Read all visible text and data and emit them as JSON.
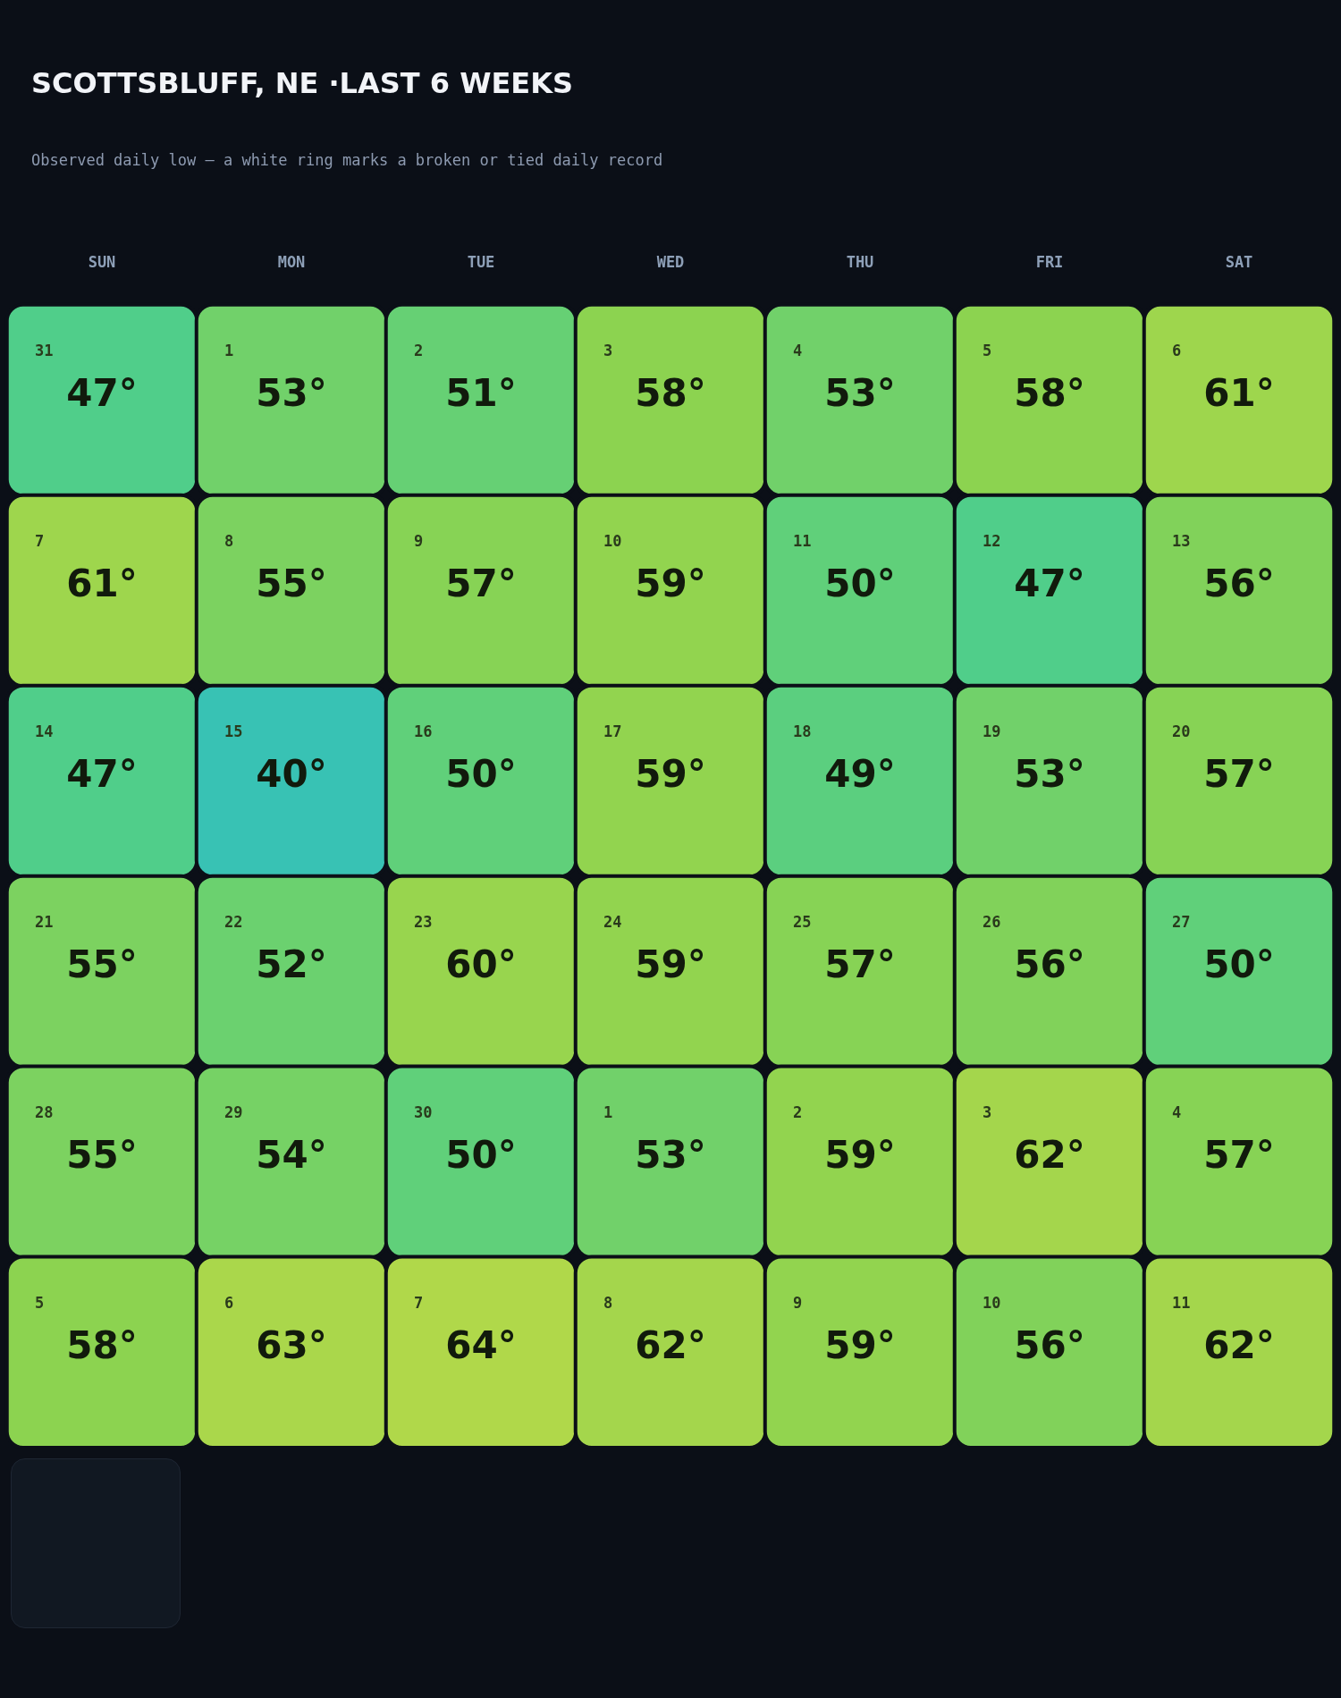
{
  "chart_data": {
    "type": "heatmap",
    "title": "SCOTTSBLUFF, NE ·LAST 6 WEEKS",
    "subtitle": "Observed daily low — a white ring marks a broken or tied daily record",
    "categories": [
      "SUN",
      "MON",
      "TUE",
      "WED",
      "THU",
      "FRI",
      "SAT"
    ],
    "y_categories": [
      null,
      null,
      null,
      null,
      null,
      null
    ],
    "cells": [
      [
        47,
        53,
        51,
        58,
        53,
        58,
        61
      ],
      [
        61,
        55,
        57,
        59,
        50,
        47,
        56
      ],
      [
        47,
        40,
        50,
        59,
        49,
        53,
        57
      ],
      [
        55,
        52,
        60,
        59,
        57,
        56,
        50
      ],
      [
        55,
        54,
        50,
        53,
        59,
        62,
        57
      ],
      [
        58,
        63,
        64,
        62,
        59,
        56,
        62
      ]
    ],
    "cell_labels": [
      [
        "47°",
        "53°",
        "51°",
        "58°",
        "53°",
        "58°",
        "61°"
      ],
      [
        "61°",
        "55°",
        "57°",
        "59°",
        "50°",
        "47°",
        "56°"
      ],
      [
        "47°",
        "40°",
        "50°",
        "59°",
        "49°",
        "53°",
        "57°"
      ],
      [
        "55°",
        "52°",
        "60°",
        "59°",
        "57°",
        "56°",
        "50°"
      ],
      [
        "55°",
        "54°",
        "50°",
        "53°",
        "59°",
        "62°",
        "57°"
      ],
      [
        "58°",
        "63°",
        "64°",
        "62°",
        "59°",
        "56°",
        "62°"
      ]
    ],
    "annotations": [
      "31",
      "1",
      "2",
      "3",
      "4",
      "5",
      "6",
      "7",
      "8",
      "9",
      "10",
      "11",
      "12",
      "13",
      "14",
      "15",
      "16",
      "17",
      "18",
      "19",
      "20",
      "21",
      "22",
      "23",
      "24",
      "25",
      "26",
      "27",
      "28",
      "29",
      "30",
      "1",
      "2",
      "3",
      "4",
      "5",
      "6",
      "7",
      "8",
      "9",
      "10",
      "11"
    ],
    "tick_labels": "x"
  }
}
